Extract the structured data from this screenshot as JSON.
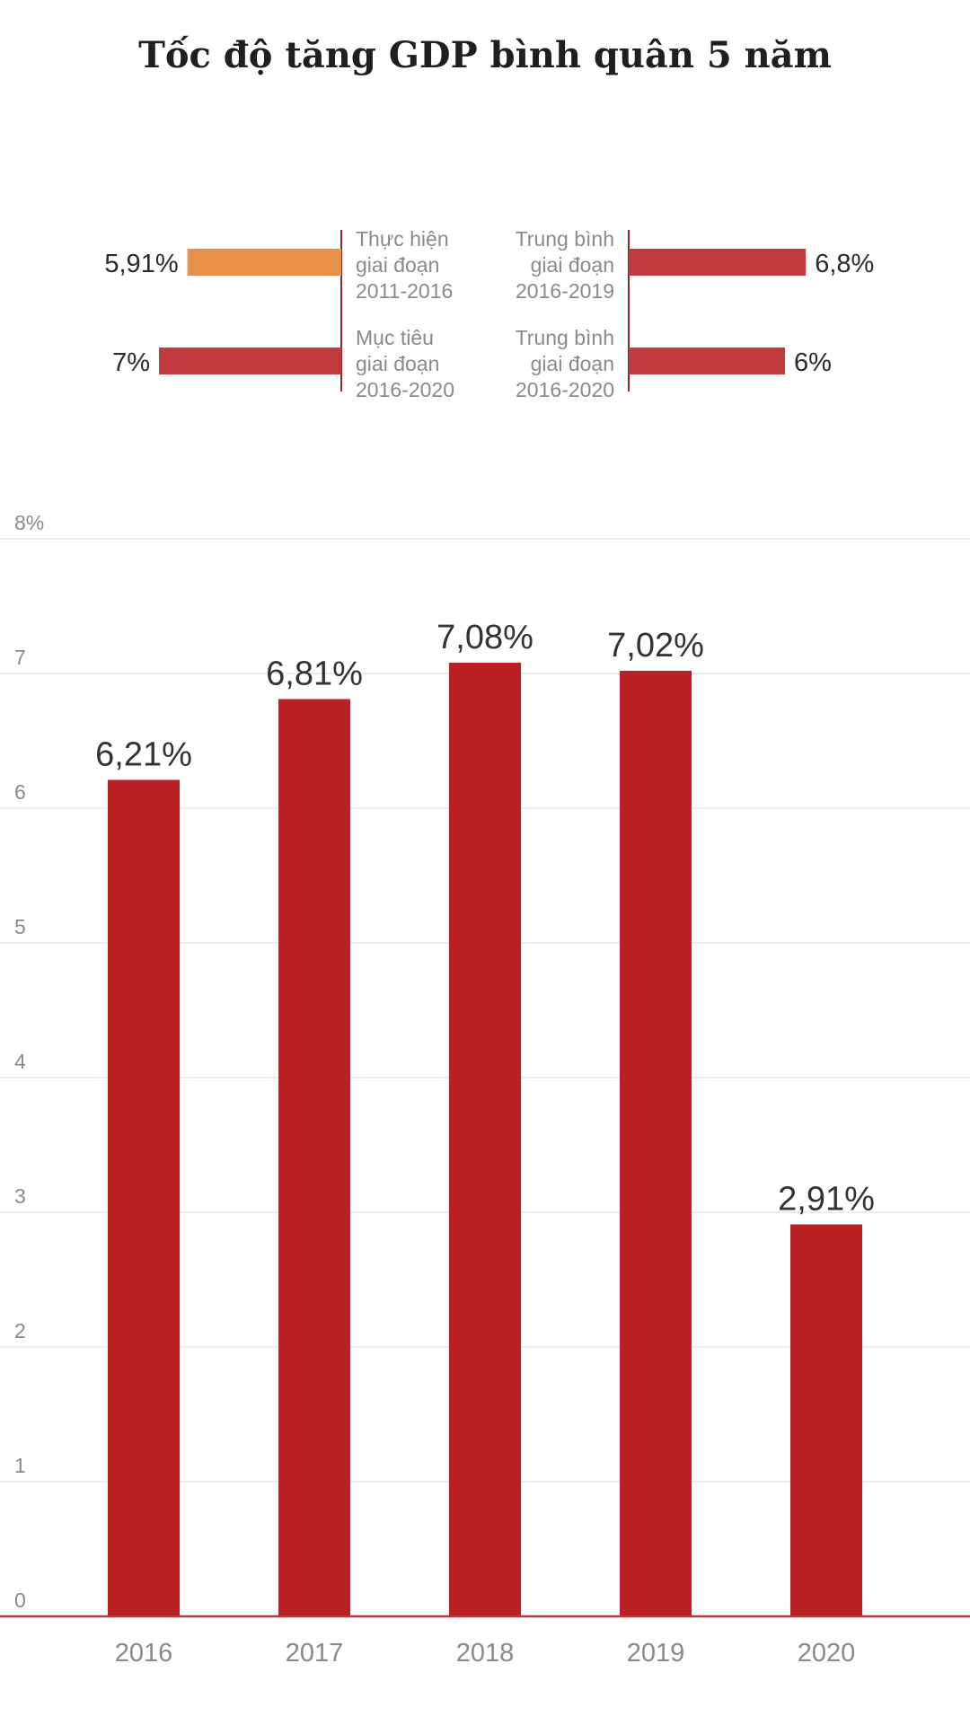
{
  "title": "Tốc độ tăng GDP bình quân 5 năm",
  "summary": {
    "left": [
      {
        "label_lines": [
          "Thực hiện",
          "giai đoạn",
          "2011-2016"
        ],
        "value": 5.91,
        "value_label": "5,91%",
        "color": "#e8914a"
      },
      {
        "label_lines": [
          "Mục tiêu",
          "giai đoạn",
          "2016-2020"
        ],
        "value": 7,
        "value_label": "7%",
        "color": "#c23a3e"
      }
    ],
    "right": [
      {
        "label_lines": [
          "Trung bình",
          "giai đoạn",
          "2016-2019"
        ],
        "value": 6.8,
        "value_label": "6,8%",
        "color": "#c23a3e"
      },
      {
        "label_lines": [
          "Trung bình",
          "giai đoạn",
          "2016-2020"
        ],
        "value": 6,
        "value_label": "6%",
        "color": "#c23a3e"
      }
    ],
    "axis_color": "#8b2a2a"
  },
  "chart_data": {
    "type": "bar",
    "categories": [
      "2016",
      "2017",
      "2018",
      "2019",
      "2020"
    ],
    "values": [
      6.21,
      6.81,
      7.08,
      7.02,
      2.91
    ],
    "data_labels": [
      "6,21%",
      "6,81%",
      "7,08%",
      "7,02%",
      "2,91%"
    ],
    "y_ticks": [
      "0",
      "1",
      "2",
      "3",
      "4",
      "5",
      "6",
      "7",
      "8%"
    ],
    "ylim": [
      0,
      8
    ],
    "grid": true,
    "bar_color": "#bb2124",
    "baseline_color": "#b03a3e"
  }
}
